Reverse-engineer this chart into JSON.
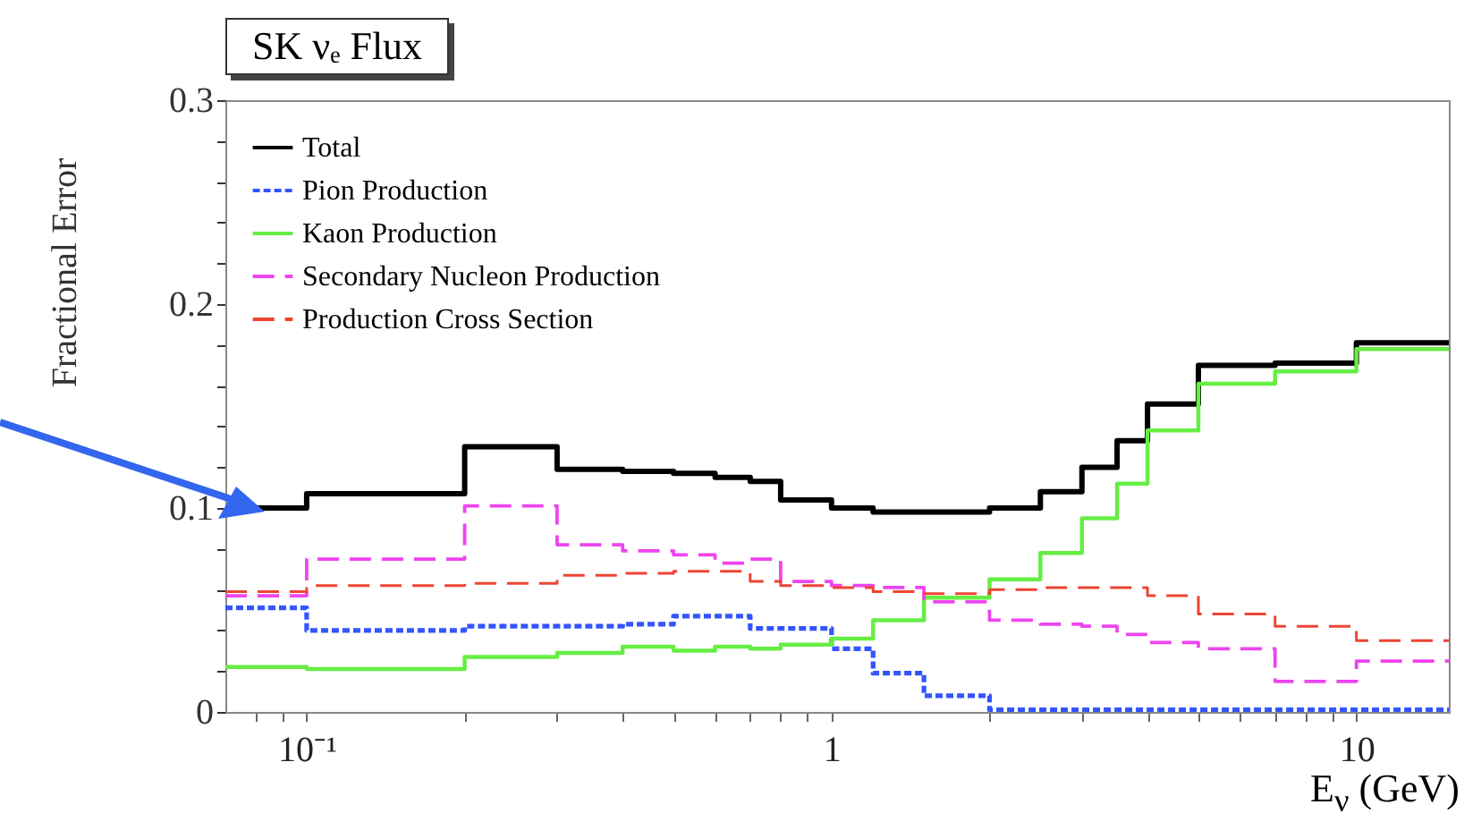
{
  "chart_data": {
    "type": "step",
    "title": "SK νₑ Flux",
    "xlabel": "E$_{ν}$ (GeV)",
    "ylabel": "Fractional Error",
    "x": [
      0.07,
      0.1,
      0.2,
      0.3,
      0.4,
      0.5,
      0.6,
      0.7,
      0.8,
      1.0,
      1.2,
      1.5,
      2.0,
      2.5,
      3.0,
      3.5,
      4.0,
      5.0,
      7.0,
      10,
      15
    ],
    "series": [
      {
        "name": "Total",
        "color": "#000000",
        "line_style": "solid",
        "values": [
          0.1,
          0.107,
          0.13,
          0.119,
          0.118,
          0.117,
          0.115,
          0.113,
          0.104,
          0.1,
          0.098,
          0.098,
          0.1,
          0.108,
          0.12,
          0.133,
          0.151,
          0.17,
          0.171,
          0.181,
          0.181
        ]
      },
      {
        "name": "Pion Production",
        "color": "#3355ff",
        "line_style": "dotted",
        "values": [
          0.051,
          0.04,
          0.042,
          0.042,
          0.043,
          0.047,
          0.047,
          0.041,
          0.041,
          0.031,
          0.019,
          0.008,
          0.001,
          0.001,
          0.001,
          0.001,
          0.001,
          0.001,
          0.001,
          0.001,
          0.001
        ]
      },
      {
        "name": "Kaon Production",
        "color": "#66ee44",
        "line_style": "solid",
        "values": [
          0.022,
          0.021,
          0.027,
          0.029,
          0.032,
          0.03,
          0.032,
          0.031,
          0.033,
          0.036,
          0.045,
          0.056,
          0.065,
          0.078,
          0.095,
          0.112,
          0.138,
          0.161,
          0.167,
          0.178,
          0.178
        ]
      },
      {
        "name": "Secondary Nucleon Production",
        "color": "#ee44ee",
        "line_style": "dashed",
        "values": [
          0.057,
          0.075,
          0.101,
          0.082,
          0.079,
          0.077,
          0.073,
          0.075,
          0.064,
          0.062,
          0.061,
          0.054,
          0.045,
          0.043,
          0.042,
          0.038,
          0.034,
          0.031,
          0.015,
          0.025,
          0.025
        ]
      },
      {
        "name": "Production Cross Section",
        "color": "#ee4433",
        "line_style": "dashed",
        "values": [
          0.059,
          0.062,
          0.063,
          0.067,
          0.068,
          0.069,
          0.069,
          0.064,
          0.062,
          0.061,
          0.059,
          0.058,
          0.06,
          0.061,
          0.061,
          0.061,
          0.057,
          0.048,
          0.042,
          0.035,
          0.035
        ]
      }
    ],
    "xlim": [
      0.07,
      15
    ],
    "log": "x",
    "xticks": [
      {
        "value": 0.08,
        "label": null
      },
      {
        "value": 0.09,
        "label": null
      },
      {
        "value": 0.1,
        "label": "10⁻¹"
      },
      {
        "value": 0.2,
        "label": null
      },
      {
        "value": 0.3,
        "label": null
      },
      {
        "value": 0.4,
        "label": null
      },
      {
        "value": 0.5,
        "label": null
      },
      {
        "value": 0.6,
        "label": null
      },
      {
        "value": 0.7,
        "label": null
      },
      {
        "value": 0.8,
        "label": null
      },
      {
        "value": 0.9,
        "label": null
      },
      {
        "value": 1,
        "label": "1"
      },
      {
        "value": 2,
        "label": null
      },
      {
        "value": 3,
        "label": null
      },
      {
        "value": 4,
        "label": null
      },
      {
        "value": 5,
        "label": null
      },
      {
        "value": 6,
        "label": null
      },
      {
        "value": 7,
        "label": null
      },
      {
        "value": 8,
        "label": null
      },
      {
        "value": 9,
        "label": null
      },
      {
        "value": 10,
        "label": "10"
      }
    ],
    "ylim": [
      0,
      0.3
    ],
    "yticks": [
      {
        "value": 0,
        "label": "0"
      },
      {
        "value": 0.02,
        "label": null
      },
      {
        "value": 0.04,
        "label": null
      },
      {
        "value": 0.06,
        "label": null
      },
      {
        "value": 0.08,
        "label": null
      },
      {
        "value": 0.1,
        "label": "0.1"
      },
      {
        "value": 0.12,
        "label": null
      },
      {
        "value": 0.14,
        "label": null
      },
      {
        "value": 0.16,
        "label": null
      },
      {
        "value": 0.18,
        "label": null
      },
      {
        "value": 0.2,
        "label": "0.2"
      },
      {
        "value": 0.22,
        "label": null
      },
      {
        "value": 0.24,
        "label": null
      },
      {
        "value": 0.26,
        "label": null
      },
      {
        "value": 0.28,
        "label": null
      },
      {
        "value": 0.3,
        "label": "0.3"
      }
    ],
    "grid": false,
    "legend": "top left"
  }
}
